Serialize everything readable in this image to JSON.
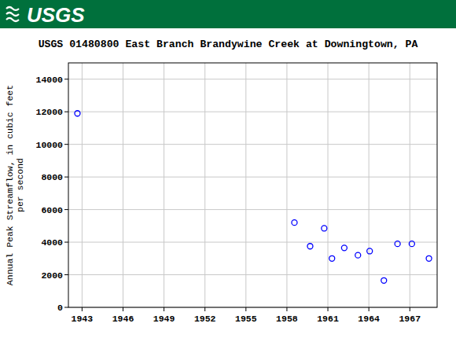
{
  "header": {
    "logo": "USGS"
  },
  "chart_data": {
    "type": "scatter",
    "title": "USGS 01480800 East Branch Brandywine Creek at Downingtown, PA",
    "y_label": [
      "Annual Peak Streamflow, in cubic feet",
      "per second"
    ],
    "x": [
      1942.66,
      1958.55,
      1959.7,
      1960.73,
      1961.3,
      1962.2,
      1963.2,
      1964.06,
      1965.1,
      1966.1,
      1967.15,
      1968.4
    ],
    "values": [
      11900,
      5200,
      3750,
      4850,
      3000,
      3650,
      3200,
      3450,
      1650,
      3900,
      3900,
      3000
    ],
    "color": "#0000ff",
    "marker": "open-circle",
    "xlim": [
      1942,
      1969
    ],
    "xticks": [
      1943,
      1946,
      1949,
      1952,
      1955,
      1958,
      1961,
      1964,
      1967
    ],
    "ylim": [
      0,
      15000
    ],
    "yticks": [
      0,
      2000,
      4000,
      6000,
      8000,
      10000,
      12000,
      14000
    ],
    "grid": true
  }
}
